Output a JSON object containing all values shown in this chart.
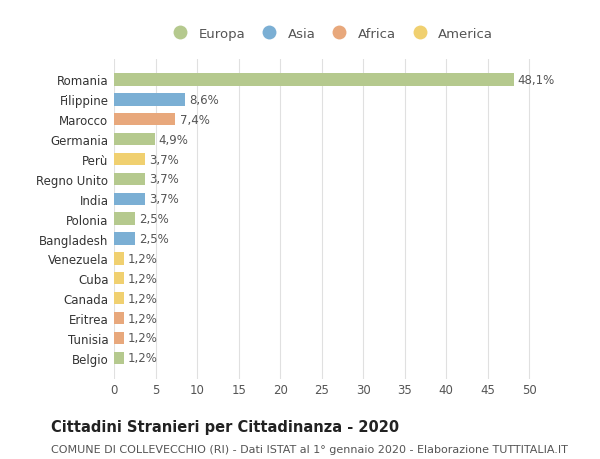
{
  "countries": [
    "Romania",
    "Filippine",
    "Marocco",
    "Germania",
    "Perù",
    "Regno Unito",
    "India",
    "Polonia",
    "Bangladesh",
    "Venezuela",
    "Cuba",
    "Canada",
    "Eritrea",
    "Tunisia",
    "Belgio"
  ],
  "values": [
    48.1,
    8.6,
    7.4,
    4.9,
    3.7,
    3.7,
    3.7,
    2.5,
    2.5,
    1.2,
    1.2,
    1.2,
    1.2,
    1.2,
    1.2
  ],
  "labels": [
    "48,1%",
    "8,6%",
    "7,4%",
    "4,9%",
    "3,7%",
    "3,7%",
    "3,7%",
    "2,5%",
    "2,5%",
    "1,2%",
    "1,2%",
    "1,2%",
    "1,2%",
    "1,2%",
    "1,2%"
  ],
  "continents": [
    "Europa",
    "Asia",
    "Africa",
    "Europa",
    "America",
    "Europa",
    "Asia",
    "Europa",
    "Asia",
    "America",
    "America",
    "America",
    "Africa",
    "Africa",
    "Europa"
  ],
  "colors": {
    "Europa": "#b5c98e",
    "Asia": "#7bafd4",
    "Africa": "#e8a87c",
    "America": "#f0d070"
  },
  "xlim": [
    0,
    52
  ],
  "xticks": [
    0,
    5,
    10,
    15,
    20,
    25,
    30,
    35,
    40,
    45,
    50
  ],
  "title": "Cittadini Stranieri per Cittadinanza - 2020",
  "subtitle": "COMUNE DI COLLEVECCHIO (RI) - Dati ISTAT al 1° gennaio 2020 - Elaborazione TUTTITALIA.IT",
  "bg_color": "#ffffff",
  "grid_color": "#e0e0e0",
  "bar_height": 0.62,
  "title_fontsize": 10.5,
  "subtitle_fontsize": 8,
  "label_fontsize": 8.5,
  "ytick_fontsize": 8.5,
  "xtick_fontsize": 8.5,
  "legend_fontsize": 9.5,
  "legend_order": [
    "Europa",
    "Asia",
    "Africa",
    "America"
  ]
}
